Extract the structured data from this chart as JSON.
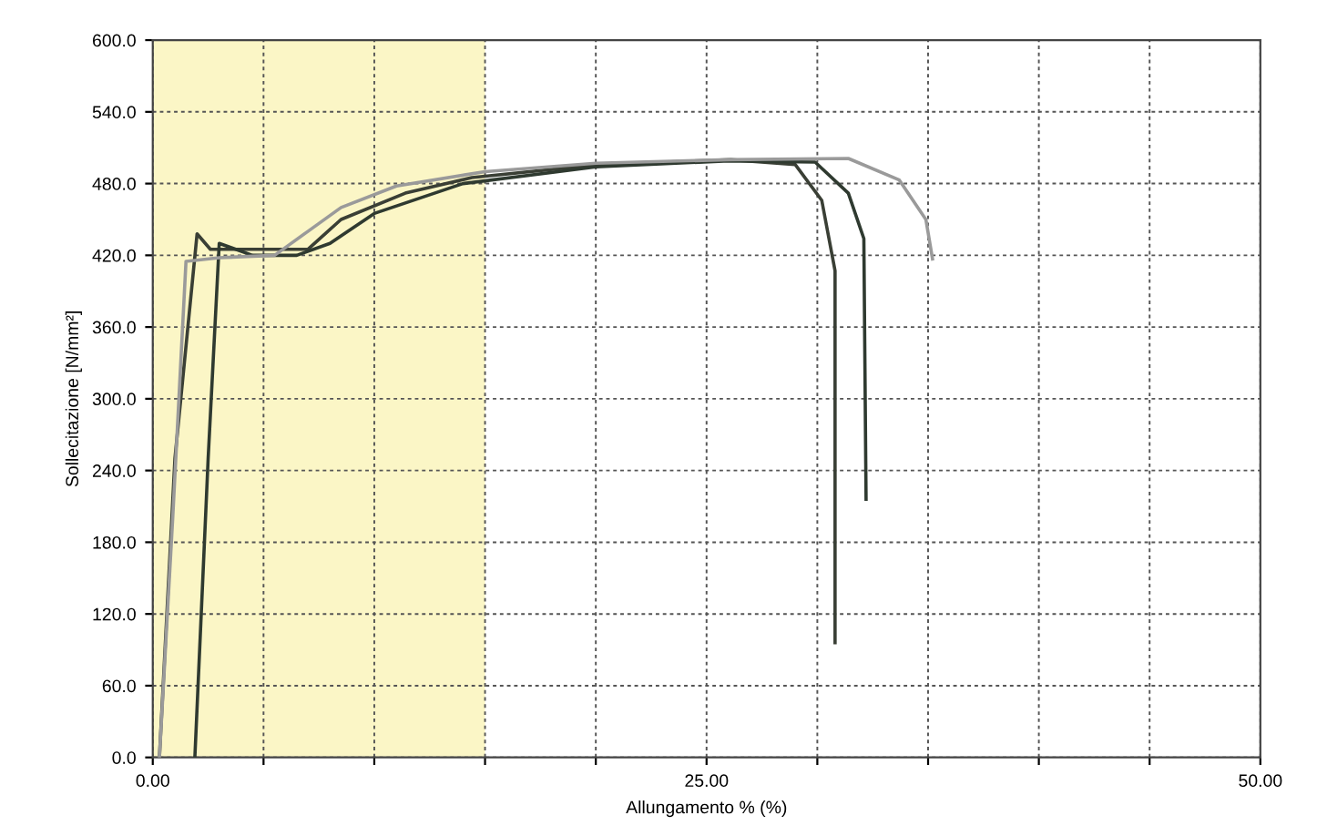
{
  "chart_data": {
    "type": "line",
    "xlabel": "Allungamento % (%)",
    "ylabel": "Sollecitazione [N/mm²]",
    "xlim": [
      0,
      50
    ],
    "ylim": [
      0,
      600
    ],
    "xticks": [
      {
        "value": 0,
        "label": "0.00"
      },
      {
        "value": 5,
        "label": null
      },
      {
        "value": 10,
        "label": null
      },
      {
        "value": 15,
        "label": null
      },
      {
        "value": 20,
        "label": null
      },
      {
        "value": 25,
        "label": "25.00"
      },
      {
        "value": 30,
        "label": null
      },
      {
        "value": 35,
        "label": null
      },
      {
        "value": 40,
        "label": null
      },
      {
        "value": 45,
        "label": null
      },
      {
        "value": 50,
        "label": "50.00"
      }
    ],
    "yticks": [
      {
        "value": 0,
        "label": "0.0"
      },
      {
        "value": 60,
        "label": "60.0"
      },
      {
        "value": 120,
        "label": "120.0"
      },
      {
        "value": 180,
        "label": "180.0"
      },
      {
        "value": 240,
        "label": "240.0"
      },
      {
        "value": 300,
        "label": "300.0"
      },
      {
        "value": 360,
        "label": "360.0"
      },
      {
        "value": 420,
        "label": "420.0"
      },
      {
        "value": 480,
        "label": "480.0"
      },
      {
        "value": 540,
        "label": "540.0"
      },
      {
        "value": 600,
        "label": "600.0"
      }
    ],
    "grid": true,
    "line_style": "solid",
    "marker": "none",
    "bands": [
      {
        "axis": "x",
        "from": 0,
        "to": 15,
        "color": "#fbf6c6"
      }
    ],
    "series": [
      {
        "color": "#3a3f35",
        "x": [
          0.3,
          1.0,
          2.0,
          2.6,
          4.5,
          7.0,
          8.5,
          11.4,
          14.4,
          20.2,
          26.1,
          29.0,
          30.2,
          30.8,
          30.8
        ],
        "values": [
          0,
          250,
          438,
          425,
          425,
          425,
          450,
          472,
          485,
          496,
          500,
          496,
          466,
          407,
          96
        ]
      },
      {
        "color": "#2f3a30",
        "x": [
          1.9,
          2.5,
          3.0,
          4.5,
          6.5,
          8.0,
          10.0,
          14.0,
          20.0,
          26.0,
          29.9,
          31.4,
          32.1,
          32.2
        ],
        "values": [
          0,
          250,
          430,
          420,
          420,
          430,
          455,
          480,
          494,
          499,
          498,
          472,
          434,
          216
        ]
      },
      {
        "color": "#9a9a9a",
        "x": [
          0.3,
          0.9,
          1.5,
          3.0,
          5.5,
          7.0,
          8.5,
          11.0,
          15.0,
          20.0,
          26.0,
          31.4,
          33.7,
          34.9,
          35.2
        ],
        "values": [
          0,
          200,
          415,
          418,
          420,
          440,
          460,
          478,
          490,
          497,
          500,
          501,
          483,
          450,
          417
        ]
      }
    ]
  }
}
